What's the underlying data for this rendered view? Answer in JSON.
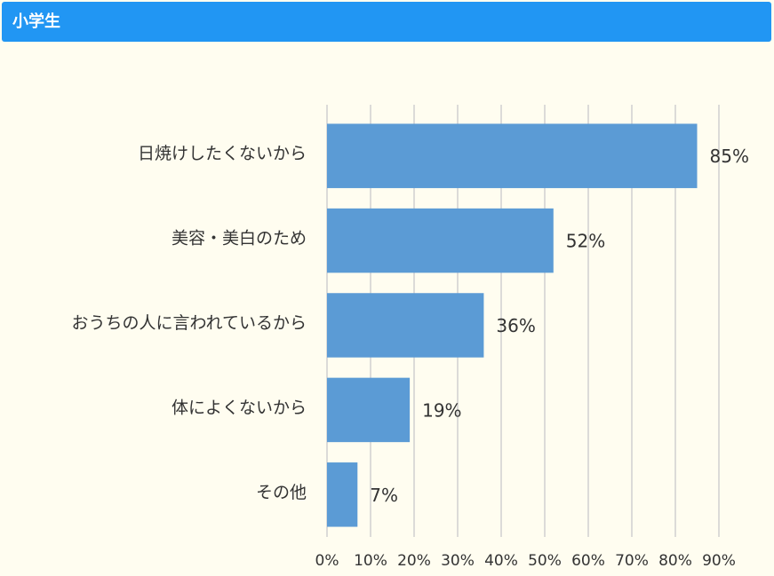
{
  "chart_data": {
    "type": "bar",
    "title": "小学生",
    "categories": [
      "日焼けしたくないから",
      "美容・美白のため",
      "おうちの人に言われているから",
      "体によくないから",
      "その他"
    ],
    "values": [
      85,
      52,
      36,
      19,
      7
    ],
    "value_labels": [
      "85%",
      "52%",
      "36%",
      "19%",
      "7%"
    ],
    "color": "#5b9bd5",
    "xlim": [
      0,
      90
    ],
    "xticks": [
      {
        "value": 0,
        "label": "0%"
      },
      {
        "value": 10,
        "label": "10%"
      },
      {
        "value": 20,
        "label": "20%"
      },
      {
        "value": 30,
        "label": "30%"
      },
      {
        "value": 40,
        "label": "40%"
      },
      {
        "value": 50,
        "label": "50%"
      },
      {
        "value": 60,
        "label": "60%"
      },
      {
        "value": 70,
        "label": "70%"
      },
      {
        "value": 80,
        "label": "80%"
      },
      {
        "value": 90,
        "label": "90%"
      }
    ],
    "grid": true
  }
}
